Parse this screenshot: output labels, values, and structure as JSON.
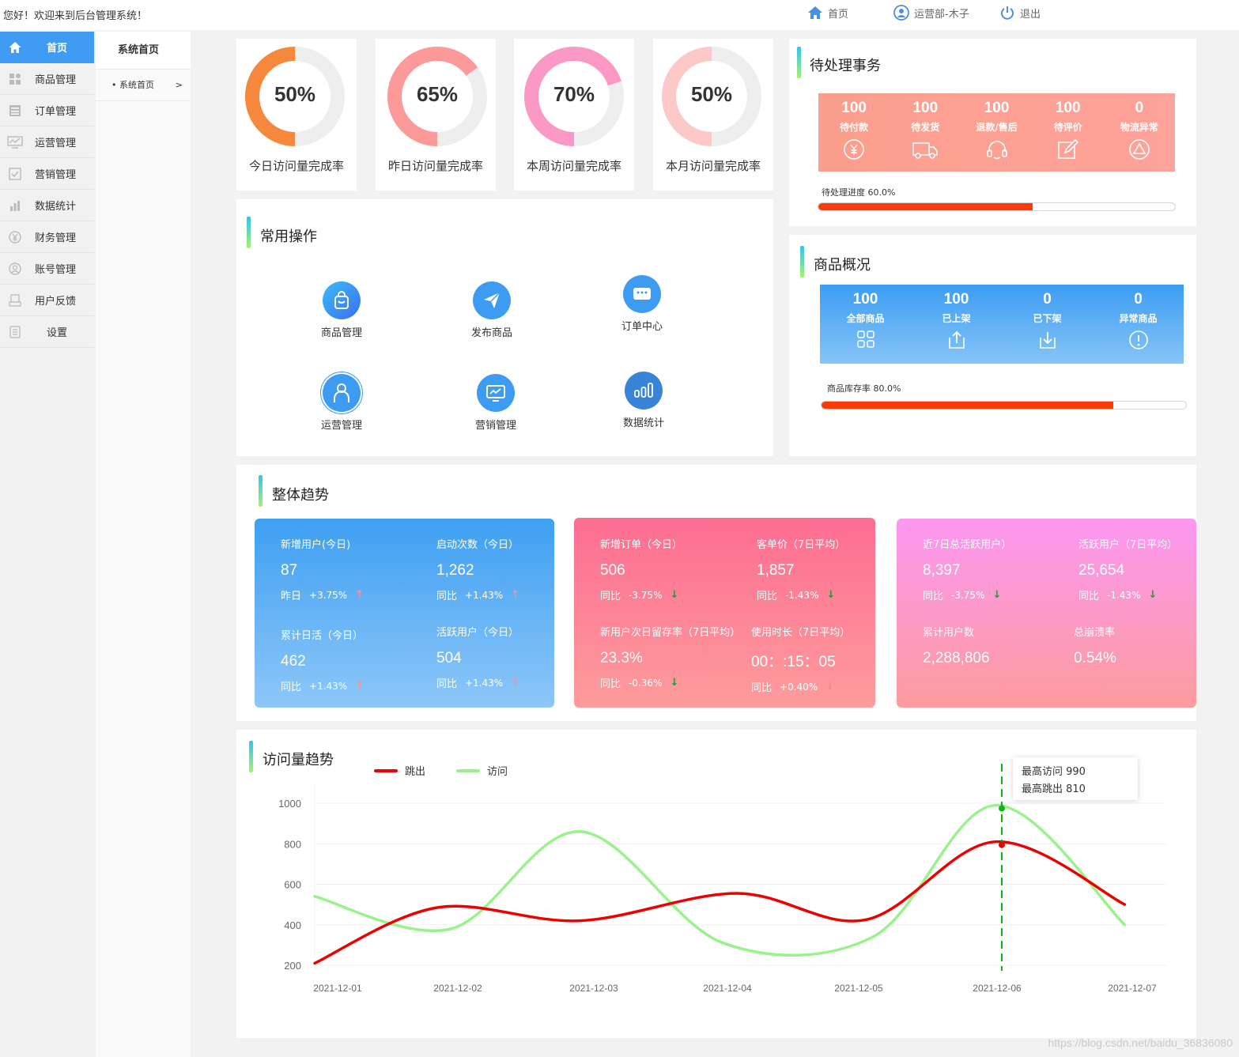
{
  "header": {
    "welcome": "您好！欢迎来到后台管理系统！",
    "nav_home": "首页",
    "nav_user": "运营部-木子",
    "nav_logout": "退出"
  },
  "sidebar": {
    "items": [
      {
        "label": "首页",
        "icon": "home-icon"
      },
      {
        "label": "商品管理",
        "icon": "grid-icon"
      },
      {
        "label": "订单管理",
        "icon": "order-icon"
      },
      {
        "label": "运营管理",
        "icon": "monitor-icon"
      },
      {
        "label": "营销管理",
        "icon": "check-icon"
      },
      {
        "label": "数据统计",
        "icon": "bar-chart-icon"
      },
      {
        "label": "财务管理",
        "icon": "yuan-icon"
      },
      {
        "label": "账号管理",
        "icon": "user-icon"
      },
      {
        "label": "用户反馈",
        "icon": "feedback-icon"
      },
      {
        "label": "设置",
        "icon": "settings-icon"
      }
    ]
  },
  "subnav": {
    "title": "系统首页",
    "item": "系统首页",
    "arrow": ">"
  },
  "rates": [
    {
      "value": "50%",
      "percent": 50,
      "label": "今日访问量完成率",
      "color": "#f6883d"
    },
    {
      "value": "65%",
      "percent": 65,
      "label": "昨日访问量完成率",
      "color": "#fc9a9a"
    },
    {
      "value": "70%",
      "percent": 70,
      "label": "本周访问量完成率",
      "color": "#fb99c6"
    },
    {
      "value": "50%",
      "percent": 50,
      "label": "本月访问量完成率",
      "color": "#fdc8c8"
    }
  ],
  "pending": {
    "title": "待处理事务",
    "items": [
      {
        "num": "100",
        "label": "待付款"
      },
      {
        "num": "100",
        "label": "待发货"
      },
      {
        "num": "100",
        "label": "退款/售后"
      },
      {
        "num": "100",
        "label": "待评价"
      },
      {
        "num": "0",
        "label": "物流异常"
      }
    ],
    "progress_label": "待处理进度 60.0%",
    "progress": 60
  },
  "goods": {
    "title": "商品概况",
    "items": [
      {
        "num": "100",
        "label": "全部商品"
      },
      {
        "num": "100",
        "label": "已上架"
      },
      {
        "num": "0",
        "label": "已下架"
      },
      {
        "num": "0",
        "label": "异常商品"
      }
    ],
    "progress_label": "商品库存率 80.0%",
    "progress": 80
  },
  "quick": {
    "title": "常用操作",
    "items": [
      {
        "label": "商品管理"
      },
      {
        "label": "发布商品"
      },
      {
        "label": "订单中心"
      },
      {
        "label": "运营管理"
      },
      {
        "label": "营销管理"
      },
      {
        "label": "数据统计"
      }
    ]
  },
  "trend": {
    "title": "整体趋势",
    "boxes": [
      {
        "cells": [
          {
            "label": "新增用户(今日)",
            "value": "87",
            "cmp": "昨日",
            "pct": "+3.75%",
            "dir": "up"
          },
          {
            "label": "启动次数（今日）",
            "value": "1,262",
            "cmp": "同比",
            "pct": "+1.43%",
            "dir": "up"
          },
          {
            "label": "累计日活（今日）",
            "value": "462",
            "cmp": "同比",
            "pct": "+1.43%",
            "dir": "up"
          },
          {
            "label": "活跃用户（今日）",
            "value": "504",
            "cmp": "同比",
            "pct": "+1.43%",
            "dir": "up"
          }
        ]
      },
      {
        "cells": [
          {
            "label": "新增订单（今日）",
            "value": "506",
            "cmp": "同比",
            "pct": "-3.75%",
            "dir": "down"
          },
          {
            "label": "客单价（7日平均）",
            "value": "1,857",
            "cmp": "同比",
            "pct": "-1.43%",
            "dir": "down"
          },
          {
            "label": "新用户次日留存率（7日平均）",
            "value": "23.3%",
            "cmp": "同比",
            "pct": "-0.36%",
            "dir": "down"
          },
          {
            "label": "使用时长（7日平均）",
            "value": "00：:15：05",
            "cmp": "同比",
            "pct": "+0.40%",
            "dir": "up"
          }
        ]
      },
      {
        "cells": [
          {
            "label": "近7日总活跃用户）",
            "value": "8,397",
            "cmp": "同比",
            "pct": "-3.75%",
            "dir": "down"
          },
          {
            "label": "活跃用户（7日平均）",
            "value": "25,654",
            "cmp": "同比",
            "pct": "-1.43%",
            "dir": "down"
          },
          {
            "label": "累计用户数",
            "value": "2,288,806",
            "cmp": "",
            "pct": "",
            "dir": ""
          },
          {
            "label": "总崩溃率",
            "value": "0.54%",
            "cmp": "",
            "pct": "",
            "dir": ""
          }
        ]
      }
    ]
  },
  "visits": {
    "title": "访问量趋势",
    "tooltip_line1": "最高访问 990",
    "tooltip_line2": "最高跳出 810"
  },
  "chart_data": {
    "type": "line",
    "title": "访问量趋势",
    "x": [
      "2021-12-01",
      "2021-12-02",
      "2021-12-03",
      "2021-12-04",
      "2021-12-05",
      "2021-12-06",
      "2021-12-07"
    ],
    "yticks": [
      200,
      400,
      600,
      800,
      1000
    ],
    "ylim": [
      200,
      1000
    ],
    "series": [
      {
        "name": "跳出",
        "color": "#ee0000",
        "points": [
          [
            0,
            210
          ],
          [
            0.9,
            485
          ],
          [
            1.95,
            420
          ],
          [
            3.1,
            555
          ],
          [
            4.05,
            425
          ],
          [
            5.0,
            810
          ],
          [
            5.95,
            500
          ]
        ]
      },
      {
        "name": "访问",
        "color": "#9af28c",
        "points": [
          [
            0,
            540
          ],
          [
            1.0,
            380
          ],
          [
            1.95,
            860
          ],
          [
            3.0,
            310
          ],
          [
            4.1,
            340
          ],
          [
            5.0,
            990
          ],
          [
            5.95,
            400
          ]
        ]
      }
    ],
    "highlight_index": 5,
    "highlight_values": {
      "访问": 990,
      "跳出": 810
    }
  },
  "watermark": "https://blog.csdn.net/baidu_36836080"
}
